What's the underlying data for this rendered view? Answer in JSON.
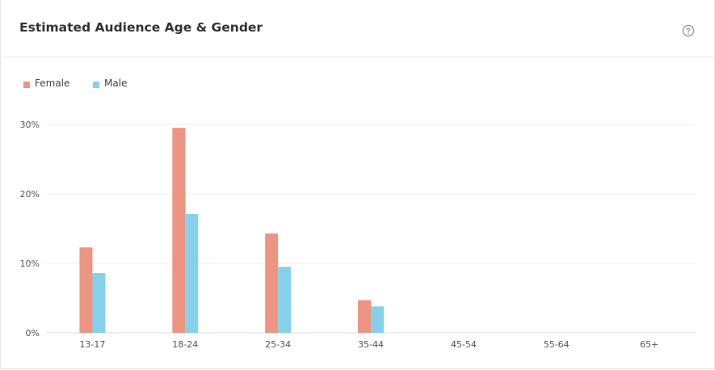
{
  "card": {
    "title": "Estimated Audience Age & Gender",
    "help_icon": "question-circle-icon"
  },
  "colors": {
    "female": "#ec9583",
    "male": "#87d0ec",
    "grid": "#eeeeee",
    "axis": "#dddddd"
  },
  "chart_data": {
    "type": "bar",
    "title": "Estimated Audience Age & Gender",
    "xlabel": "",
    "ylabel": "",
    "categories": [
      "13-17",
      "18-24",
      "25-34",
      "35-44",
      "45-54",
      "55-64",
      "65+"
    ],
    "series": [
      {
        "name": "Female",
        "values": [
          12.3,
          29.5,
          14.3,
          4.7,
          0,
          0,
          0
        ]
      },
      {
        "name": "Male",
        "values": [
          8.6,
          17.1,
          9.5,
          3.8,
          0,
          0,
          0
        ]
      }
    ],
    "ylim": [
      0,
      30
    ],
    "yticks": [
      0,
      10,
      20,
      30
    ],
    "ytick_labels": [
      "0%",
      "10%",
      "20%",
      "30%"
    ],
    "grid": true,
    "legend_position": "top-left"
  }
}
